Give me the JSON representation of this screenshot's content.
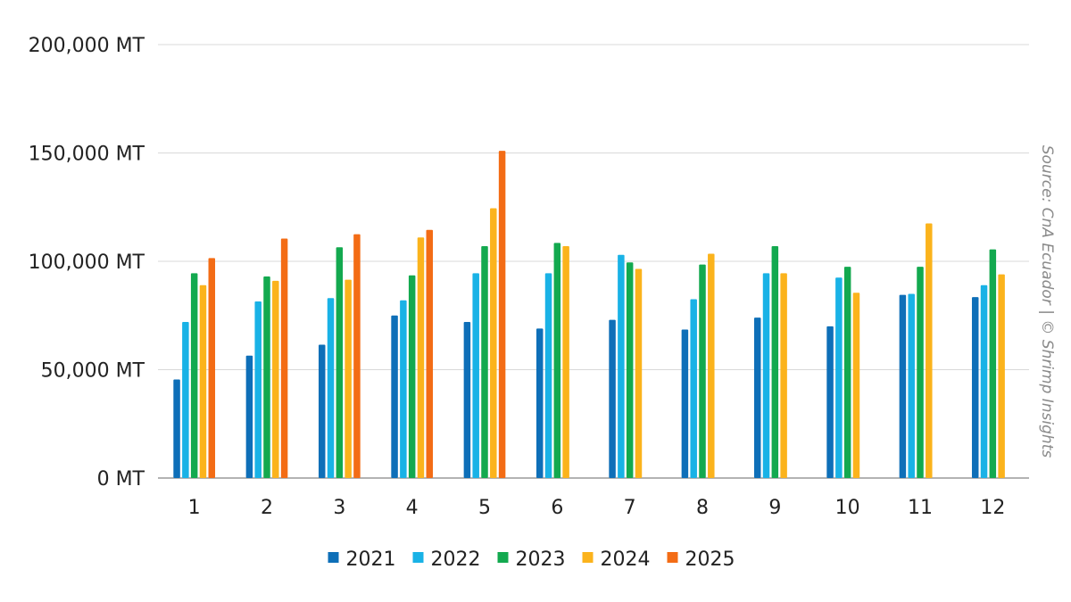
{
  "chart_data": {
    "type": "bar",
    "categories": [
      "1",
      "2",
      "3",
      "4",
      "5",
      "6",
      "7",
      "8",
      "9",
      "10",
      "11",
      "12"
    ],
    "series": [
      {
        "name": "2021",
        "color": "#0e6fb8",
        "values": [
          45500,
          56500,
          61500,
          75000,
          72000,
          69000,
          73000,
          68500,
          74000,
          70000,
          84500,
          83500
        ]
      },
      {
        "name": "2022",
        "color": "#19b2e6",
        "values": [
          72000,
          81500,
          83000,
          82000,
          94500,
          94500,
          103000,
          82500,
          94500,
          92500,
          85000,
          89000
        ]
      },
      {
        "name": "2023",
        "color": "#13a94f",
        "values": [
          94500,
          93000,
          106500,
          93500,
          107000,
          108500,
          99500,
          98500,
          107000,
          97500,
          97500,
          105500
        ]
      },
      {
        "name": "2024",
        "color": "#fbb31c",
        "values": [
          89000,
          91000,
          91500,
          111000,
          124500,
          107000,
          96500,
          103500,
          94500,
          85500,
          117500,
          94000
        ]
      },
      {
        "name": "2025",
        "color": "#f36c15",
        "values": [
          101500,
          110500,
          112500,
          114500,
          151000,
          null,
          null,
          null,
          null,
          null,
          null,
          null
        ]
      }
    ],
    "yticks": [
      "0 MT",
      "50,000 MT",
      "100,000 MT",
      "150,000 MT",
      "200,000 MT"
    ],
    "ylim": [
      0,
      200000
    ],
    "grid": true,
    "legend_position": "bottom-center",
    "source": "Source: CnA Ecuador | © Shrimp Insights"
  }
}
